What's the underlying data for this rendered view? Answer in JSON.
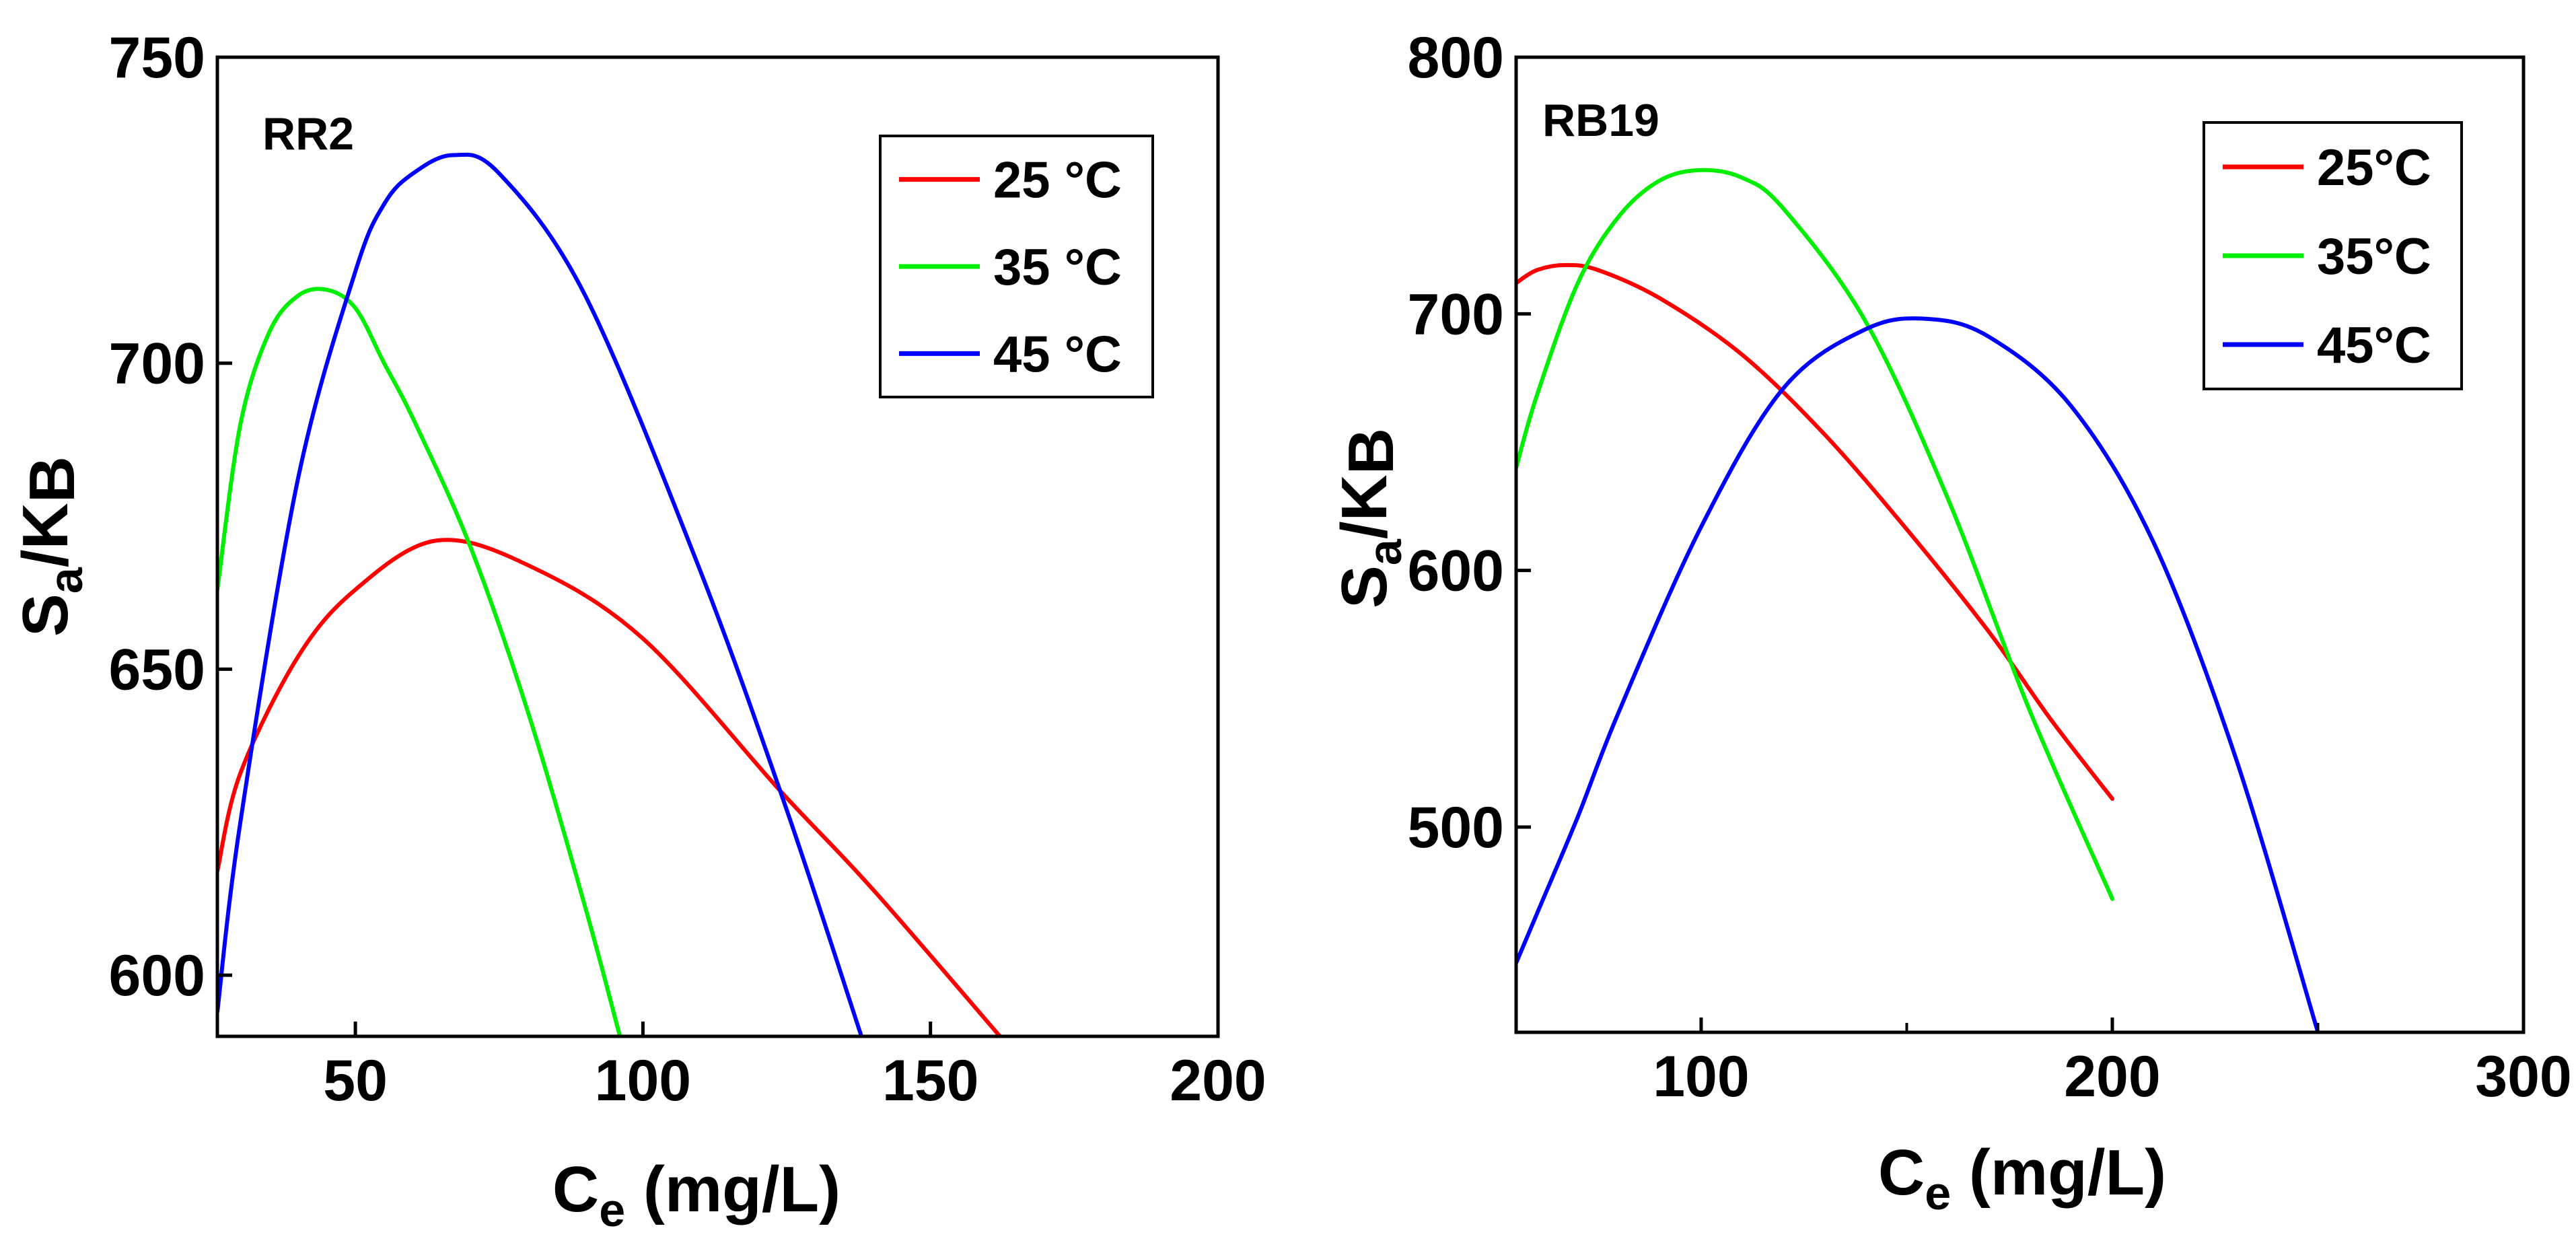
{
  "chart_data": [
    {
      "id": "left",
      "type": "line",
      "panel_label": "RR2",
      "xlabel": {
        "main": "C",
        "sub": "e",
        "rest": " (mg/L)"
      },
      "ylabel": {
        "s": "S",
        "a": "a",
        "slash_k": "/K",
        "b": "B"
      },
      "xlim": [
        26,
        200
      ],
      "ylim": [
        590,
        750
      ],
      "xticks": [
        50,
        100,
        150,
        200
      ],
      "yticks": [
        600,
        650,
        700,
        750
      ],
      "x_tick_labels": [
        "50",
        "100",
        "150",
        "200"
      ],
      "y_tick_labels": [
        "600",
        "650",
        "700",
        "750"
      ],
      "legend_position": "top-right",
      "series": [
        {
          "name": "25 °C",
          "color": "#ff0000",
          "x": [
            26,
            30,
            40,
            50,
            64,
            80,
            100,
            124,
            140,
            163
          ],
          "y": [
            617,
            633,
            652,
            663,
            671,
            667,
            655,
            630,
            614,
            589
          ]
        },
        {
          "name": "35 °C",
          "color": "#00ee00",
          "x": [
            26,
            30,
            35,
            40,
            45,
            50,
            55,
            60,
            70,
            80,
            90,
            96
          ],
          "y": [
            663,
            690,
            705,
            711,
            712,
            709,
            700,
            691,
            670,
            643,
            611,
            590
          ]
        },
        {
          "name": "45 °C",
          "color": "#0000ff",
          "x": [
            26,
            30,
            40,
            50,
            55,
            60,
            67,
            75,
            90,
            110,
            125,
            138
          ],
          "y": [
            594,
            625,
            681,
            715,
            726,
            731,
            734,
            731,
            711,
            666,
            627,
            590
          ]
        }
      ]
    },
    {
      "id": "right",
      "type": "line",
      "panel_label": "RB19",
      "xlabel": {
        "main": "C",
        "sub": "e",
        "rest": " (mg/L)"
      },
      "ylabel": {
        "s": "S",
        "a": "a",
        "slash_k": "/K",
        "b": "B"
      },
      "xlim": [
        55,
        300
      ],
      "ylim": [
        420,
        800
      ],
      "xticks": [
        100,
        200,
        300
      ],
      "x_minor_ticks": [
        150,
        250
      ],
      "yticks": [
        500,
        600,
        700,
        800
      ],
      "x_tick_labels": [
        "100",
        "200",
        "300"
      ],
      "y_tick_labels": [
        "500",
        "600",
        "700",
        "800"
      ],
      "legend_position": "top-right",
      "series": [
        {
          "name": "25°C",
          "color": "#ff0000",
          "x": [
            55,
            60,
            67,
            75,
            90,
            110,
            130,
            150,
            170,
            185,
            200
          ],
          "y": [
            712,
            717,
            719,
            717,
            706,
            684,
            653,
            616,
            576,
            542,
            511
          ]
        },
        {
          "name": "35°C",
          "color": "#00ee00",
          "x": [
            55,
            60,
            70,
            80,
            90,
            100,
            110,
            120,
            140,
            160,
            180,
            200
          ],
          "y": [
            640,
            668,
            712,
            738,
            752,
            756,
            753,
            741,
            697,
            628,
            545,
            472
          ]
        },
        {
          "name": "45°C",
          "color": "#0000ff",
          "x": [
            55,
            60,
            70,
            80,
            100,
            120,
            140,
            155,
            170,
            190,
            210,
            230,
            250
          ],
          "y": [
            447,
            466,
            504,
            545,
            617,
            671,
            694,
            698,
            691,
            664,
            611,
            527,
            420
          ]
        }
      ]
    }
  ]
}
